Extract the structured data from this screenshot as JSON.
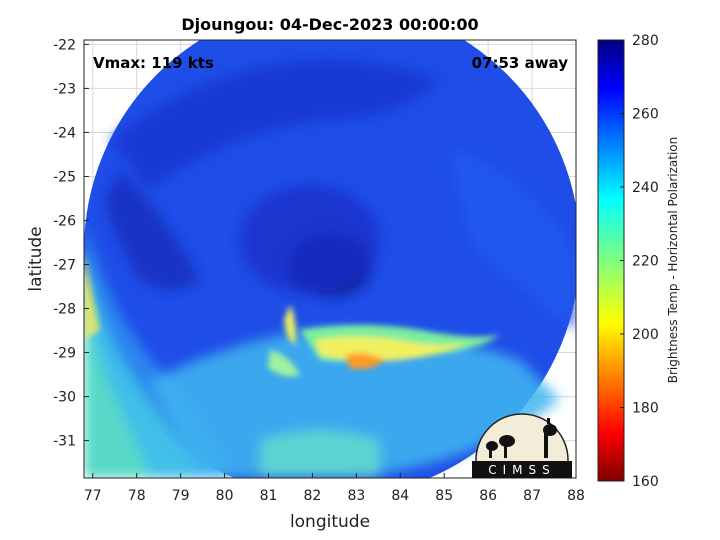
{
  "chart_data": {
    "type": "heatmap",
    "title": "Djoungou: 04-Dec-2023 00:00:00",
    "xlabel": "longitude",
    "ylabel": "latitude",
    "xlim": [
      76.8,
      88
    ],
    "ylim": [
      -31.85,
      -21.9
    ],
    "xticks": [
      "77",
      "78",
      "79",
      "80",
      "81",
      "82",
      "83",
      "84",
      "85",
      "86",
      "87",
      "88"
    ],
    "yticks": [
      "-22",
      "-23",
      "-24",
      "-25",
      "-26",
      "-27",
      "-28",
      "-29",
      "-30",
      "-31"
    ],
    "grid": true,
    "annotations": {
      "vmax": "Vmax: 119 kts",
      "time_away": "07:53 away"
    },
    "storm_center": {
      "lon": 82.7,
      "lat": -26.8
    },
    "colorbar": {
      "label": "Brightness Temp - Horizontal Polarization",
      "min": 160,
      "max": 280,
      "ticks": [
        "160",
        "180",
        "200",
        "220",
        "240",
        "260",
        "280"
      ]
    },
    "logo": "CIMSS"
  }
}
